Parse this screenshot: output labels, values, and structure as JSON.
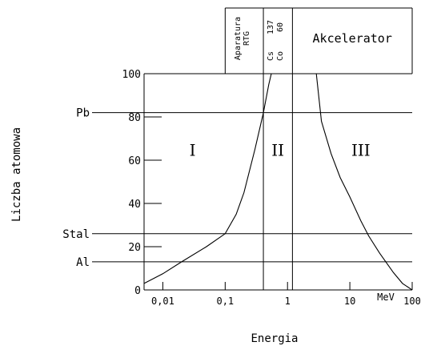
{
  "chart_data": {
    "type": "line",
    "title": "",
    "xlabel": "Energia",
    "ylabel": "Liczba atomowa",
    "x_unit": "MeV",
    "x_scale": "log",
    "xlim": [
      0.005,
      100
    ],
    "ylim": [
      0,
      100
    ],
    "x_ticks": [
      {
        "value": 0.01,
        "label": "0,01"
      },
      {
        "value": 0.1,
        "label": "0,1"
      },
      {
        "value": 1,
        "label": "1"
      },
      {
        "value": 10,
        "label": "10"
      },
      {
        "value": 100,
        "label": "100"
      }
    ],
    "y_ticks": [
      0,
      20,
      40,
      60,
      80,
      100
    ],
    "reference_lines": [
      {
        "label": "Pb",
        "y": 82
      },
      {
        "label": "Stal",
        "y": 26
      },
      {
        "label": "Al",
        "y": 13
      }
    ],
    "regions": [
      "I",
      "II",
      "III"
    ],
    "energy_ranges": [
      {
        "label": "Aparatura RTG",
        "from": 0.1,
        "to": 0.41
      },
      {
        "label": "137 Cs",
        "from": 0.41,
        "to": 1.2,
        "part": "left"
      },
      {
        "label": "60 Co",
        "from": 0.41,
        "to": 1.2,
        "part": "right"
      },
      {
        "label": "Akcelerator",
        "from": 1.2,
        "to": 100
      }
    ],
    "series": [
      {
        "x": [
          0.005,
          0.01,
          0.02,
          0.05,
          0.1,
          0.15,
          0.2,
          0.3,
          0.41,
          0.5,
          0.55
        ],
        "y": [
          3,
          7.5,
          13,
          20,
          26,
          35,
          45,
          65,
          82,
          95,
          100
        ]
      },
      {
        "x": [
          2.9,
          3.5,
          5,
          7,
          10,
          15,
          20,
          30,
          50,
          70,
          100
        ],
        "y": [
          100,
          78,
          63,
          52,
          43,
          32,
          25,
          17,
          8,
          3,
          0
        ]
      }
    ]
  }
}
